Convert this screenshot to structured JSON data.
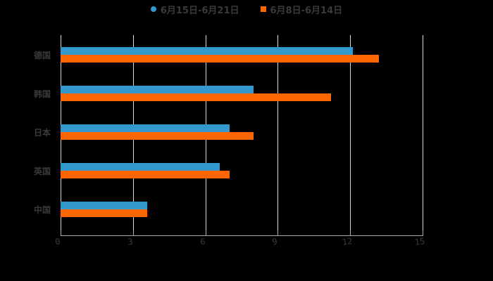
{
  "chart_data": {
    "type": "bar",
    "orientation": "horizontal",
    "title": "",
    "xlabel": "",
    "ylabel": "",
    "categories": [
      "德国",
      "韩国",
      "日本",
      "英国",
      "中国"
    ],
    "series": [
      {
        "name": "6月15日-6月21日",
        "color": "#3399cc",
        "values": [
          12.1,
          8.0,
          7.0,
          6.6,
          3.6
        ]
      },
      {
        "name": "6月8日-6月14日",
        "color": "#ff6600",
        "values": [
          13.2,
          11.2,
          8.0,
          7.0,
          3.6
        ]
      }
    ],
    "xlim": [
      0,
      15
    ],
    "xticks": [
      "0",
      "3",
      "6",
      "9",
      "12",
      "15"
    ],
    "grid": "vertical",
    "legend_position": "top"
  },
  "legend": {
    "items": [
      {
        "label": "6月15日-6月21日",
        "color": "#3399cc",
        "marker": "circle"
      },
      {
        "label": "6月8日-6月14日",
        "color": "#ff6600",
        "marker": "square"
      }
    ]
  },
  "colors": {
    "background": "#000000",
    "text": "#3a3a3a",
    "grid": "#d8d8d8"
  }
}
